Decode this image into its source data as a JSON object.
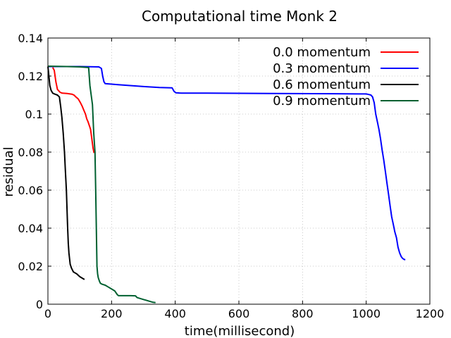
{
  "chart_data": {
    "type": "line",
    "title": "Computational time Monk 2",
    "xlabel": "time(millisecond)",
    "ylabel": "residual",
    "xlim": [
      0,
      1200
    ],
    "ylim": [
      0,
      0.14
    ],
    "xticks": [
      0,
      200,
      400,
      600,
      800,
      1000,
      1200
    ],
    "yticks": [
      0,
      0.02,
      0.04,
      0.06,
      0.08,
      0.1,
      0.12,
      0.14
    ],
    "xtick_labels": [
      "0",
      "200",
      "400",
      "600",
      "800",
      "1000",
      "1200"
    ],
    "ytick_labels": [
      "0",
      "0.02",
      "0.04",
      "0.06",
      "0.08",
      "0.1",
      "0.12",
      "0.14"
    ],
    "grid": true,
    "legend_position": "top-right",
    "series": [
      {
        "name": "0.0 momentum",
        "color": "#ff0000",
        "x": [
          15,
          20,
          25,
          30,
          38,
          45,
          60,
          75,
          82,
          88,
          95,
          102,
          108,
          113,
          118,
          122,
          126,
          130,
          134,
          138,
          142,
          145
        ],
        "y": [
          0.1245,
          0.123,
          0.117,
          0.113,
          0.1115,
          0.111,
          0.1108,
          0.1105,
          0.11,
          0.109,
          0.108,
          0.106,
          0.104,
          0.102,
          0.1,
          0.0975,
          0.096,
          0.094,
          0.092,
          0.087,
          0.082,
          0.0795
        ]
      },
      {
        "name": "0.3 momentum",
        "color": "#0000ff",
        "x": [
          0,
          100,
          160,
          168,
          172,
          176,
          180,
          220,
          300,
          350,
          390,
          396,
          402,
          420,
          500,
          700,
          900,
          1000,
          1008,
          1015,
          1020,
          1025,
          1030,
          1035,
          1040,
          1045,
          1050,
          1055,
          1060,
          1065,
          1070,
          1075,
          1080,
          1085,
          1090,
          1095,
          1100,
          1105,
          1110,
          1115,
          1120,
          1123
        ],
        "y": [
          0.125,
          0.125,
          0.1248,
          0.124,
          0.12,
          0.117,
          0.116,
          0.1155,
          0.1145,
          0.114,
          0.1138,
          0.112,
          0.1112,
          0.111,
          0.111,
          0.1108,
          0.1107,
          0.1106,
          0.1103,
          0.11,
          0.109,
          0.106,
          0.1,
          0.096,
          0.092,
          0.087,
          0.081,
          0.076,
          0.07,
          0.064,
          0.058,
          0.052,
          0.046,
          0.042,
          0.038,
          0.035,
          0.03,
          0.027,
          0.025,
          0.024,
          0.0235,
          0.0235
        ]
      },
      {
        "name": "0.6 momentum",
        "color": "#000000",
        "x": [
          0,
          3,
          6,
          10,
          15,
          22,
          30,
          36,
          40,
          44,
          48,
          52,
          55,
          58,
          60,
          62,
          64,
          66,
          68,
          70,
          74,
          80,
          90,
          100,
          110,
          115
        ],
        "y": [
          0.125,
          0.12,
          0.115,
          0.1125,
          0.111,
          0.1105,
          0.11,
          0.109,
          0.104,
          0.098,
          0.09,
          0.08,
          0.07,
          0.06,
          0.05,
          0.04,
          0.032,
          0.027,
          0.024,
          0.021,
          0.019,
          0.017,
          0.016,
          0.0145,
          0.0135,
          0.013
        ]
      },
      {
        "name": "0.9 momentum",
        "color": "#006030",
        "x": [
          0,
          60,
          100,
          128,
          132,
          136,
          140,
          144,
          148,
          150,
          152,
          154,
          156,
          158,
          160,
          162,
          165,
          170,
          180,
          190,
          200,
          210,
          218,
          222,
          230,
          245,
          260,
          275,
          280,
          290,
          300,
          310,
          320,
          330,
          338
        ],
        "y": [
          0.1252,
          0.125,
          0.1248,
          0.1245,
          0.115,
          0.11,
          0.105,
          0.09,
          0.08,
          0.06,
          0.04,
          0.02,
          0.016,
          0.014,
          0.013,
          0.012,
          0.011,
          0.0105,
          0.01,
          0.009,
          0.008,
          0.007,
          0.005,
          0.0045,
          0.0045,
          0.0045,
          0.0045,
          0.0044,
          0.0035,
          0.003,
          0.0025,
          0.002,
          0.0015,
          0.001,
          0.0008
        ]
      }
    ]
  }
}
